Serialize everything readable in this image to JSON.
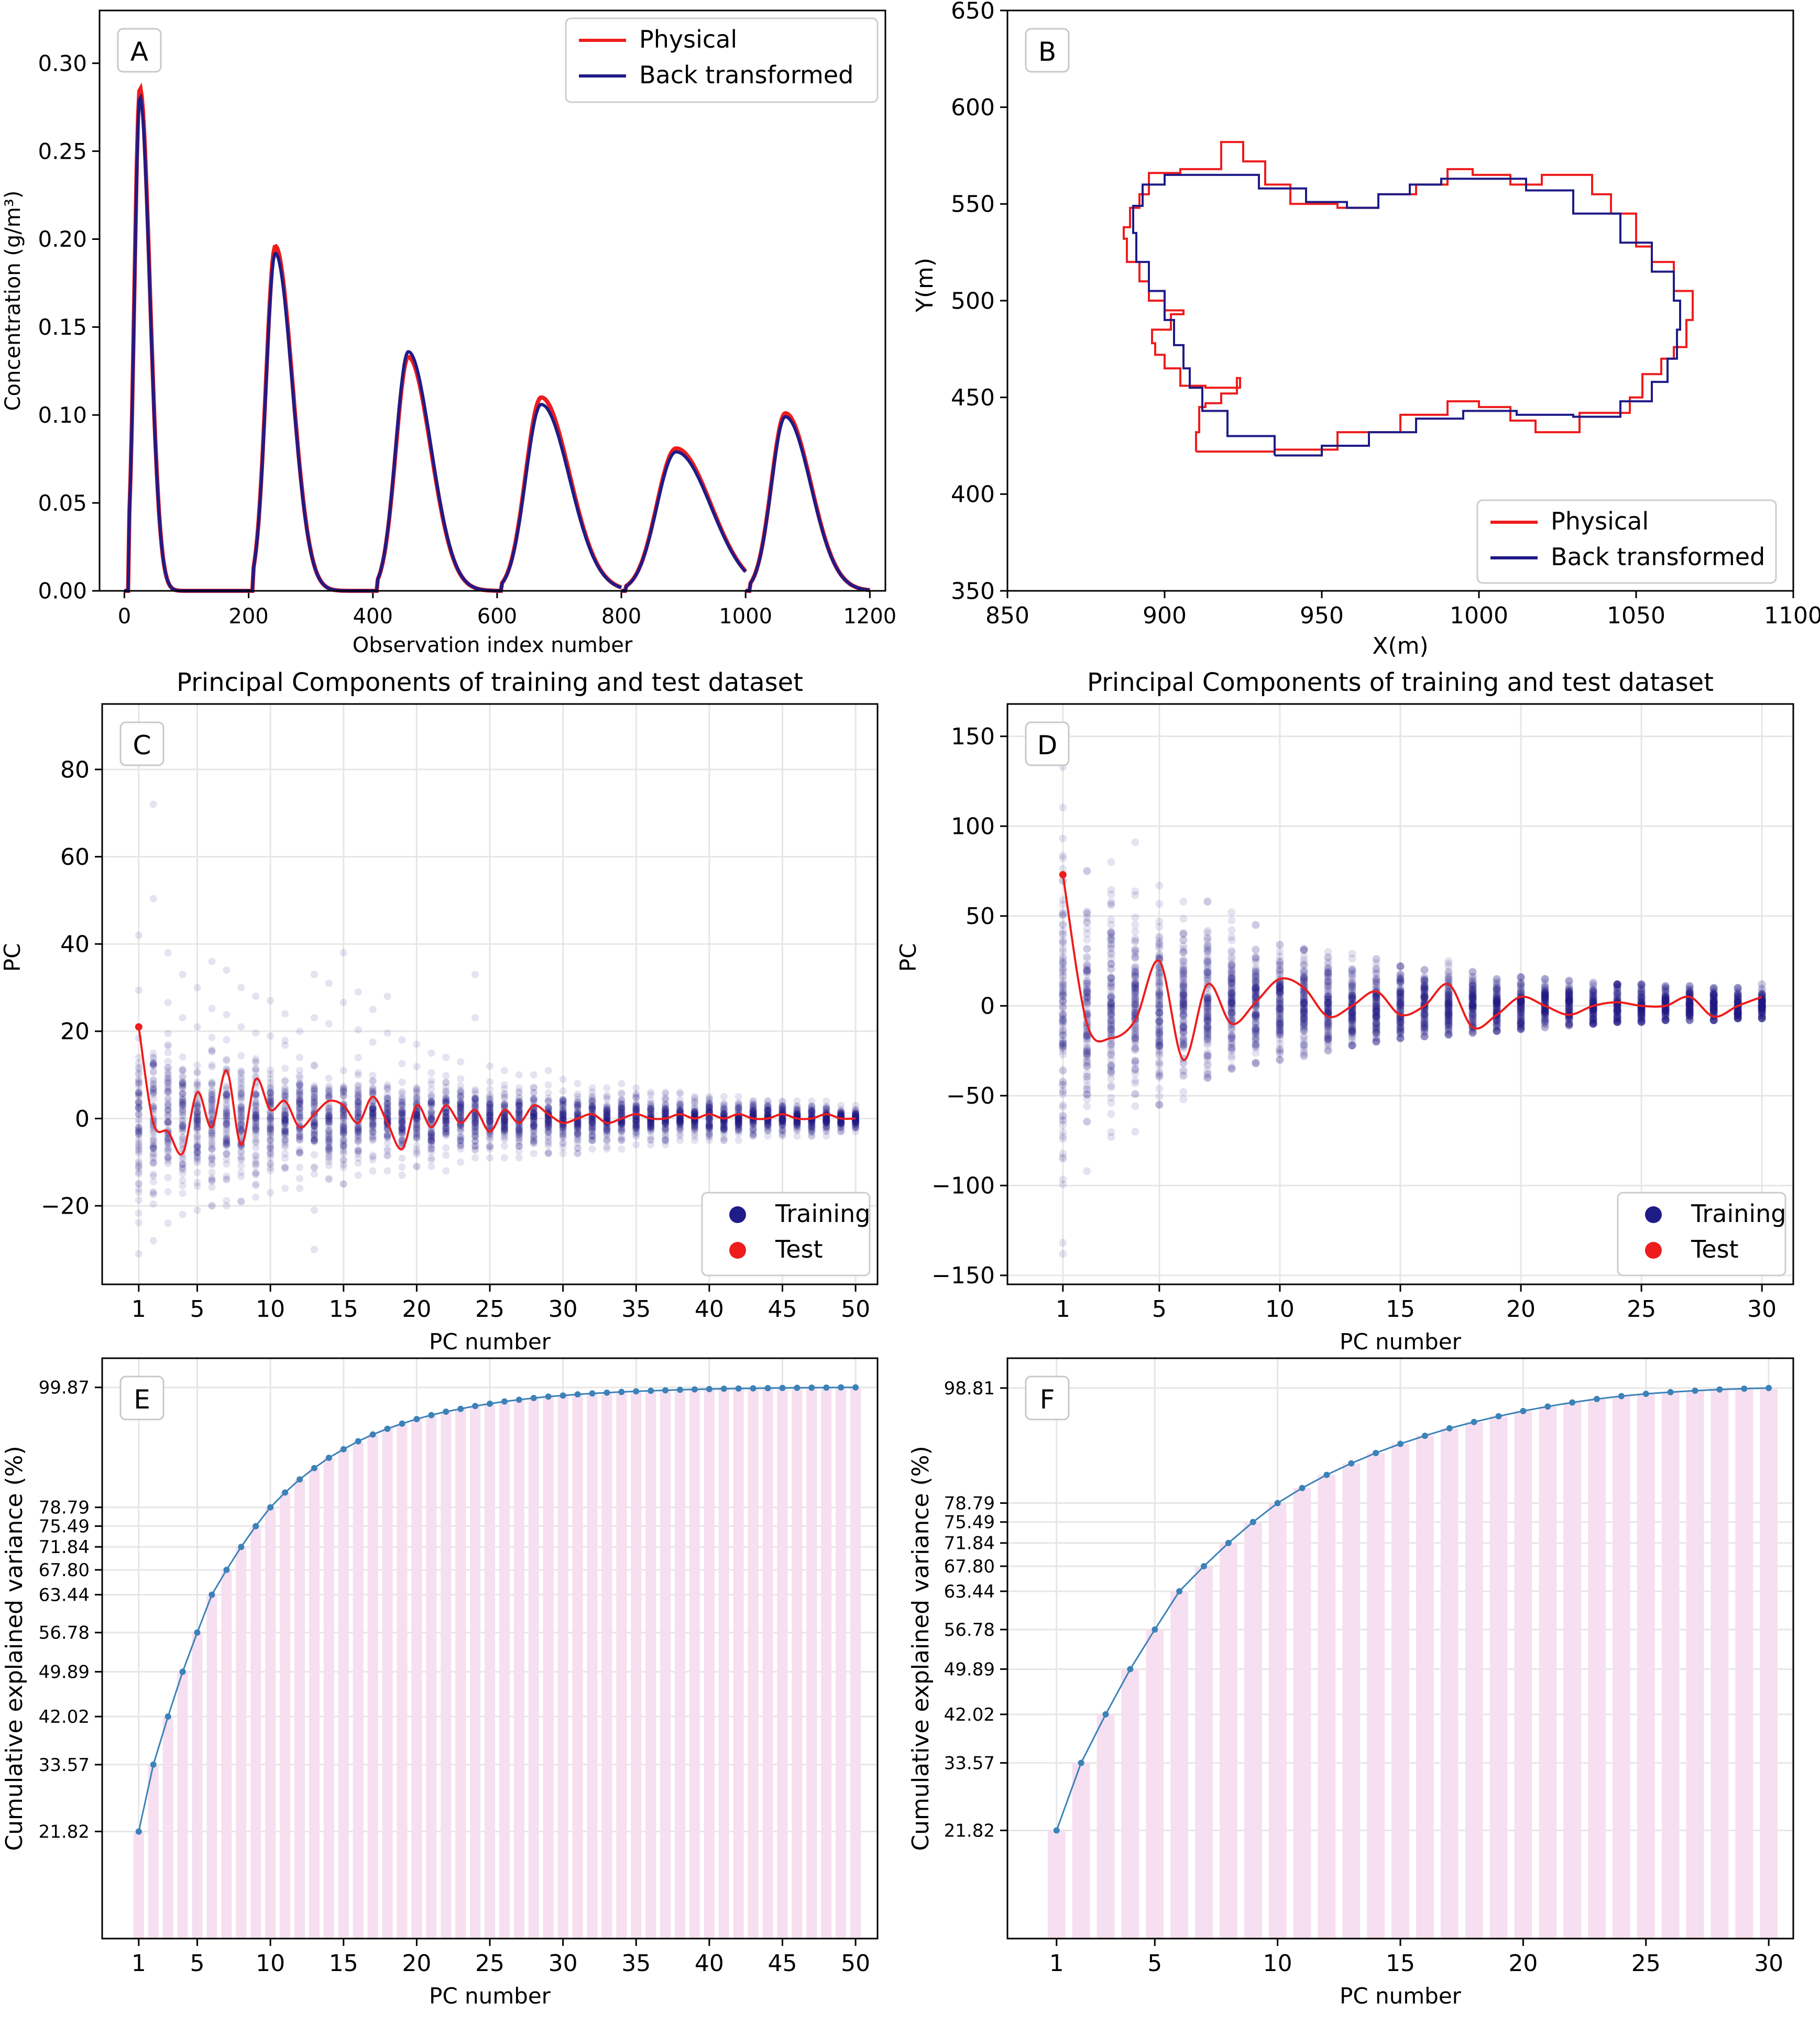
{
  "figure": {
    "panels": [
      "A",
      "B",
      "C",
      "D",
      "E",
      "F"
    ]
  },
  "chart_data": [
    {
      "panel": "A",
      "type": "line",
      "title": "",
      "xlabel": "Observation index number",
      "ylabel": "Concentration (g/m³)",
      "xlim": [
        -40,
        1225
      ],
      "ylim": [
        0,
        0.33
      ],
      "xticks": [
        0,
        200,
        400,
        600,
        800,
        1000,
        1200
      ],
      "yticks": [
        0.0,
        0.05,
        0.1,
        0.15,
        0.2,
        0.25,
        0.3
      ],
      "ytick_labels": [
        "0.00",
        "0.05",
        "0.10",
        "0.15",
        "0.20",
        "0.25",
        "0.30"
      ],
      "legend": {
        "position": "upper-right",
        "entries": [
          "Physical",
          "Back transformed"
        ]
      },
      "peaks": [
        {
          "start": 0,
          "center": 25,
          "height_physical": 0.286,
          "height_back": 0.281
        },
        {
          "start": 200,
          "center": 243,
          "height_physical": 0.196,
          "height_back": 0.192
        },
        {
          "start": 400,
          "center": 457,
          "height_physical": 0.133,
          "height_back": 0.136
        },
        {
          "start": 600,
          "center": 671,
          "height_physical": 0.11,
          "height_back": 0.106
        },
        {
          "start": 800,
          "center": 888,
          "height_physical": 0.081,
          "height_back": 0.079
        },
        {
          "start": 1000,
          "center": 1064,
          "height_physical": 0.101,
          "height_back": 0.099
        }
      ],
      "series": [
        {
          "name": "Physical",
          "color": "#ee1c1c"
        },
        {
          "name": "Back transformed",
          "color": "#1f1b87"
        }
      ]
    },
    {
      "panel": "B",
      "type": "line",
      "title": "",
      "xlabel": "X(m)",
      "ylabel": "Y(m)",
      "xlim": [
        850,
        1100
      ],
      "ylim": [
        350,
        650
      ],
      "xticks": [
        850,
        900,
        950,
        1000,
        1050,
        1100
      ],
      "yticks": [
        350,
        400,
        450,
        500,
        550,
        600,
        650
      ],
      "legend": {
        "position": "lower-right",
        "entries": [
          "Physical",
          "Back transformed"
        ]
      },
      "series": [
        {
          "name": "Physical",
          "color": "#ee1c1c",
          "points": [
            [
              910,
              422
            ],
            [
              935,
              423
            ],
            [
              955,
              432
            ],
            [
              975,
              441
            ],
            [
              990,
              448
            ],
            [
              1000,
              445
            ],
            [
              1010,
              438
            ],
            [
              1018,
              432
            ],
            [
              1032,
              442
            ],
            [
              1048,
              450
            ],
            [
              1052,
              462
            ],
            [
              1058,
              470
            ],
            [
              1062,
              476
            ],
            [
              1066,
              490
            ],
            [
              1068,
              505
            ],
            [
              1062,
              520
            ],
            [
              1055,
              528
            ],
            [
              1050,
              545
            ],
            [
              1042,
              555
            ],
            [
              1036,
              565
            ],
            [
              1020,
              560
            ],
            [
              1010,
              565
            ],
            [
              998,
              568
            ],
            [
              990,
              560
            ],
            [
              980,
              555
            ],
            [
              968,
              548
            ],
            [
              955,
              550
            ],
            [
              940,
              560
            ],
            [
              932,
              572
            ],
            [
              925,
              582
            ],
            [
              918,
              568
            ],
            [
              905,
              566
            ],
            [
              895,
              555
            ],
            [
              892,
              548
            ],
            [
              889,
              538
            ],
            [
              887,
              532
            ],
            [
              888,
              520
            ],
            [
              892,
              510
            ],
            [
              895,
              500
            ],
            [
              900,
              495
            ],
            [
              906,
              493
            ],
            [
              902,
              485
            ],
            [
              896,
              478
            ],
            [
              897,
              472
            ],
            [
              900,
              465
            ],
            [
              905,
              456
            ],
            [
              913,
              455
            ],
            [
              920,
              455
            ],
            [
              924,
              460
            ],
            [
              923,
              452
            ],
            [
              918,
              447
            ],
            [
              913,
              445
            ],
            [
              911,
              432
            ],
            [
              910,
              422
            ]
          ]
        },
        {
          "name": "Back transformed",
          "color": "#1f1b87",
          "points": [
            [
              935,
              420
            ],
            [
              950,
              425
            ],
            [
              965,
              432
            ],
            [
              980,
              439
            ],
            [
              995,
              443
            ],
            [
              1012,
              441
            ],
            [
              1030,
              440
            ],
            [
              1045,
              448
            ],
            [
              1055,
              458
            ],
            [
              1060,
              470
            ],
            [
              1063,
              485
            ],
            [
              1064,
              500
            ],
            [
              1062,
              515
            ],
            [
              1055,
              530
            ],
            [
              1045,
              545
            ],
            [
              1030,
              557
            ],
            [
              1015,
              563
            ],
            [
              1000,
              563
            ],
            [
              988,
              560
            ],
            [
              978,
              555
            ],
            [
              968,
              548
            ],
            [
              958,
              551
            ],
            [
              945,
              558
            ],
            [
              930,
              565
            ],
            [
              912,
              565
            ],
            [
              900,
              560
            ],
            [
              893,
              549
            ],
            [
              890,
              535
            ],
            [
              891,
              520
            ],
            [
              895,
              505
            ],
            [
              900,
              490
            ],
            [
              903,
              477
            ],
            [
              906,
              465
            ],
            [
              908,
              455
            ],
            [
              912,
              443
            ],
            [
              920,
              430
            ],
            [
              935,
              420
            ]
          ]
        }
      ]
    },
    {
      "panel": "C",
      "type": "scatter",
      "title": "Principal Components of training and test dataset",
      "xlabel": "PC number",
      "ylabel": "PC",
      "xlim": [
        -1.5,
        51.5
      ],
      "ylim": [
        -38,
        95
      ],
      "xticks": [
        1,
        5,
        10,
        15,
        20,
        25,
        30,
        35,
        40,
        45,
        50
      ],
      "yticks": [
        -20,
        0,
        20,
        40,
        60,
        80
      ],
      "ytick_labels": [
        "−20",
        "0",
        "20",
        "40",
        "60",
        "80"
      ],
      "grid": true,
      "legend": {
        "position": "lower-right",
        "entries": [
          "Training",
          "Test"
        ]
      },
      "n_components": 50,
      "training_dense_halfwidth": [
        14,
        13,
        12,
        11.5,
        11,
        10.5,
        10,
        9.5,
        9,
        8.7,
        8.4,
        8,
        7.7,
        7.4,
        7.1,
        6.8,
        6.5,
        6.3,
        6,
        5.8,
        5.6,
        5.4,
        5.2,
        5,
        4.8,
        4.6,
        4.4,
        4.2,
        4,
        3.9,
        3.7,
        3.6,
        3.4,
        3.3,
        3.2,
        3.1,
        3,
        2.9,
        2.8,
        2.7,
        2.6,
        2.5,
        2.4,
        2.3,
        2.2,
        2.1,
        2,
        1.9,
        1.8,
        1.7
      ],
      "training_extent": [
        [
          -31,
          42
        ],
        [
          -28,
          72
        ],
        [
          -24,
          38
        ],
        [
          -22,
          33
        ],
        [
          -21,
          30
        ],
        [
          -20,
          36
        ],
        [
          -20,
          34
        ],
        [
          -19,
          30
        ],
        [
          -18,
          28
        ],
        [
          -17,
          27
        ],
        [
          -16,
          24
        ],
        [
          -16,
          20
        ],
        [
          -30,
          33
        ],
        [
          -14,
          31
        ],
        [
          -15,
          38
        ],
        [
          -13,
          29
        ],
        [
          -12,
          25
        ],
        [
          -12,
          28
        ],
        [
          -13,
          18
        ],
        [
          -11,
          17
        ],
        [
          -11,
          15
        ],
        [
          -12,
          14
        ],
        [
          -10,
          13
        ],
        [
          -9,
          33
        ],
        [
          -9,
          12
        ],
        [
          -9,
          11
        ],
        [
          -9,
          10
        ],
        [
          -8,
          10
        ],
        [
          -8,
          11
        ],
        [
          -8,
          9
        ],
        [
          -8,
          8
        ],
        [
          -7,
          7
        ],
        [
          -7,
          7
        ],
        [
          -7,
          8
        ],
        [
          -6,
          7
        ],
        [
          -6,
          6
        ],
        [
          -6,
          6
        ],
        [
          -5,
          6
        ],
        [
          -5,
          5
        ],
        [
          -5,
          5
        ],
        [
          -5,
          5
        ],
        [
          -5,
          5
        ],
        [
          -4,
          4
        ],
        [
          -4,
          4
        ],
        [
          -4,
          4
        ],
        [
          -4,
          4
        ],
        [
          -4,
          4
        ],
        [
          -4,
          4
        ],
        [
          -3,
          3
        ],
        [
          -3,
          3
        ]
      ],
      "test_values": [
        21,
        -1,
        -3,
        -8,
        6,
        -2,
        11,
        -6,
        9,
        2,
        4,
        -2,
        1,
        4,
        3,
        -1,
        5,
        -1,
        -7,
        3,
        -2,
        3,
        -1,
        2,
        -3,
        2,
        -1,
        3,
        1,
        -1,
        0,
        1,
        -1,
        0,
        1,
        0,
        0,
        1,
        0,
        1,
        0,
        1,
        0,
        0,
        1,
        0,
        0,
        1,
        0,
        0
      ],
      "series": [
        {
          "name": "Training",
          "color": "#1f1b87"
        },
        {
          "name": "Test",
          "color": "#ee1c1c"
        }
      ]
    },
    {
      "panel": "D",
      "type": "scatter",
      "title": "Principal Components of training and test dataset",
      "xlabel": "PC number",
      "ylabel": "PC",
      "xlim": [
        -1.3,
        31.3
      ],
      "ylim": [
        -155,
        168
      ],
      "xticks": [
        1,
        5,
        10,
        15,
        20,
        25,
        30
      ],
      "yticks": [
        -150,
        -100,
        -50,
        0,
        50,
        100,
        150
      ],
      "ytick_labels": [
        "−150",
        "−100",
        "−50",
        "0",
        "50",
        "100",
        "150"
      ],
      "grid": true,
      "legend": {
        "position": "lower-right",
        "entries": [
          "Training",
          "Test"
        ]
      },
      "n_components": 30,
      "training_dense_halfwidth": [
        60,
        46,
        40,
        36,
        32,
        30,
        28,
        26,
        24,
        22,
        20,
        19,
        18,
        17,
        16,
        15,
        14,
        13,
        12,
        11.5,
        11,
        10.5,
        10,
        9.5,
        9,
        8.7,
        8.4,
        8,
        7.7,
        7.4
      ],
      "training_extent": [
        [
          -138,
          133
        ],
        [
          -92,
          75
        ],
        [
          -73,
          80
        ],
        [
          -70,
          91
        ],
        [
          -55,
          67
        ],
        [
          -52,
          58
        ],
        [
          -40,
          58
        ],
        [
          -35,
          52
        ],
        [
          -32,
          45
        ],
        [
          -30,
          34
        ],
        [
          -28,
          32
        ],
        [
          -25,
          30
        ],
        [
          -22,
          29
        ],
        [
          -20,
          26
        ],
        [
          -18,
          22
        ],
        [
          -17,
          20
        ],
        [
          -16,
          25
        ],
        [
          -15,
          19
        ],
        [
          -14,
          15
        ],
        [
          -13,
          16
        ],
        [
          -12,
          15
        ],
        [
          -11,
          14
        ],
        [
          -10,
          13
        ],
        [
          -9,
          12
        ],
        [
          -9,
          12
        ],
        [
          -8,
          11
        ],
        [
          -8,
          11
        ],
        [
          -8,
          10
        ],
        [
          -7,
          10
        ],
        [
          -7,
          12
        ]
      ],
      "test_values": [
        73,
        -10,
        -18,
        -8,
        25,
        -30,
        12,
        -10,
        2,
        15,
        10,
        -6,
        0,
        8,
        -5,
        0,
        12,
        -12,
        -5,
        5,
        0,
        -5,
        0,
        2,
        0,
        0,
        5,
        -6,
        0,
        5
      ],
      "series": [
        {
          "name": "Training",
          "color": "#1f1b87"
        },
        {
          "name": "Test",
          "color": "#ee1c1c"
        }
      ]
    },
    {
      "panel": "E",
      "type": "bar",
      "title": "",
      "xlabel": "PC number",
      "ylabel": "Cumulative explained variance (%)",
      "xlim": [
        -1.5,
        51.5
      ],
      "ylim": [
        3,
        105
      ],
      "xticks": [
        1,
        5,
        10,
        15,
        20,
        25,
        30,
        35,
        40,
        45,
        50
      ],
      "ytick_labels": [
        "21.82",
        "33.57",
        "42.02",
        "49.89",
        "56.78",
        "63.44",
        "67.80",
        "71.84",
        "75.49",
        "78.79",
        "99.87"
      ],
      "yticks": [
        21.82,
        33.57,
        42.02,
        49.89,
        56.78,
        63.44,
        67.8,
        71.84,
        75.49,
        78.79,
        99.87
      ],
      "grid": true,
      "bar_color": "#f6dff0",
      "line_color": "#3b82b8",
      "values": [
        21.82,
        33.57,
        42.02,
        49.89,
        56.78,
        63.44,
        67.8,
        71.84,
        75.49,
        78.79,
        81.4,
        83.7,
        85.7,
        87.5,
        89.0,
        90.4,
        91.6,
        92.6,
        93.5,
        94.3,
        95.0,
        95.6,
        96.1,
        96.6,
        97.0,
        97.4,
        97.7,
        98.0,
        98.25,
        98.45,
        98.65,
        98.8,
        98.95,
        99.07,
        99.18,
        99.28,
        99.37,
        99.45,
        99.52,
        99.58,
        99.63,
        99.67,
        99.71,
        99.74,
        99.77,
        99.8,
        99.82,
        99.84,
        99.86,
        99.87
      ]
    },
    {
      "panel": "F",
      "type": "bar",
      "title": "",
      "xlabel": "PC number",
      "ylabel": "Cumulative explained variance (%)",
      "xlim": [
        -1,
        31
      ],
      "ylim": [
        3,
        104
      ],
      "xticks": [
        1,
        5,
        10,
        15,
        20,
        25,
        30
      ],
      "ytick_labels": [
        "21.82",
        "33.57",
        "42.02",
        "49.89",
        "56.78",
        "63.44",
        "67.80",
        "71.84",
        "75.49",
        "78.79",
        "98.81"
      ],
      "yticks": [
        21.82,
        33.57,
        42.02,
        49.89,
        56.78,
        63.44,
        67.8,
        71.84,
        75.49,
        78.79,
        98.81
      ],
      "grid": true,
      "bar_color": "#f6dff0",
      "line_color": "#3b82b8",
      "values": [
        21.82,
        33.57,
        42.02,
        49.89,
        56.78,
        63.44,
        67.8,
        71.84,
        75.49,
        78.79,
        81.4,
        83.7,
        85.7,
        87.5,
        89.1,
        90.5,
        91.8,
        92.9,
        93.9,
        94.8,
        95.6,
        96.3,
        96.9,
        97.4,
        97.8,
        98.1,
        98.35,
        98.55,
        98.7,
        98.81
      ]
    }
  ]
}
